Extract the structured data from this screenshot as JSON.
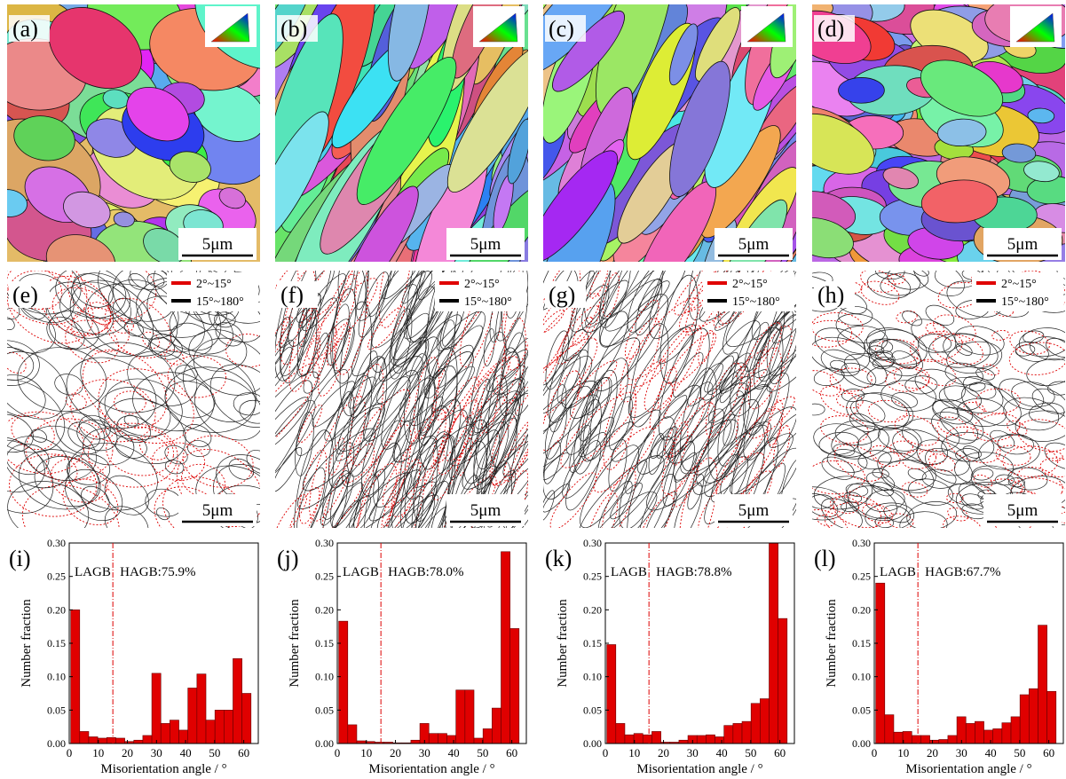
{
  "maps": [
    {
      "label": "(a)",
      "scale": "5μm"
    },
    {
      "label": "(b)",
      "scale": "5μm"
    },
    {
      "label": "(c)",
      "scale": "5μm"
    },
    {
      "label": "(d)",
      "scale": "5μm"
    },
    {
      "label": "(e)",
      "scale": "5μm"
    },
    {
      "label": "(f)",
      "scale": "5μm"
    },
    {
      "label": "(g)",
      "scale": "5μm"
    },
    {
      "label": "(h)",
      "scale": "5μm"
    }
  ],
  "boundary_legend": [
    {
      "name": "2°~15°",
      "color": "#e00000"
    },
    {
      "name": "15°~180°",
      "color": "#000000"
    }
  ],
  "chart_data": [
    {
      "type": "histogram",
      "label": "(i)",
      "annotations": [
        "LAGB",
        "HAGB:75.9%"
      ],
      "divider": 15,
      "x_label": "Misorientation angle / °",
      "y_label": "Number fraction",
      "color": "#e00000",
      "bins": [
        0.5,
        3.6,
        6.7,
        9.8,
        12.9,
        16,
        19.1,
        22.2,
        25.3,
        28.4,
        31.5,
        34.6,
        37.7,
        40.8,
        43.9,
        47,
        50.1,
        53.2,
        56.3,
        59.4,
        62.5
      ],
      "values": [
        0.2,
        0.018,
        0.01,
        0.008,
        0.009,
        0.008,
        0.003,
        0.005,
        0.012,
        0.105,
        0.03,
        0.035,
        0.02,
        0.083,
        0.104,
        0.035,
        0.05,
        0.05,
        0.127,
        0.075
      ],
      "xlim": [
        0,
        65
      ],
      "ylim": [
        0,
        0.3
      ],
      "xticks": [
        0,
        10,
        20,
        30,
        40,
        50,
        60
      ],
      "yticks": [
        {
          "value": 0,
          "label": "0.00"
        },
        {
          "value": 0.05,
          "label": "0.05"
        },
        {
          "value": 0.1,
          "label": "0.10"
        },
        {
          "value": 0.15,
          "label": "0.15"
        },
        {
          "value": 0.2,
          "label": "0.20"
        },
        {
          "value": 0.25,
          "label": "0.25"
        },
        {
          "value": 0.3,
          "label": "0.30"
        }
      ]
    },
    {
      "type": "histogram",
      "label": "(j)",
      "annotations": [
        "LAGB",
        "HAGB:78.0%"
      ],
      "divider": 15,
      "x_label": "Misorientation angle / °",
      "y_label": "Number fraction",
      "color": "#e00000",
      "bins": [
        0.5,
        3.6,
        6.7,
        9.8,
        12.9,
        16,
        19.1,
        22.2,
        25.3,
        28.4,
        31.5,
        34.6,
        37.7,
        40.8,
        43.9,
        47,
        50.1,
        53.2,
        56.3,
        59.4,
        62.5
      ],
      "values": [
        0.183,
        0.028,
        0.004,
        0.003,
        0.002,
        0.002,
        0.001,
        0.001,
        0.005,
        0.03,
        0.015,
        0.015,
        0.012,
        0.08,
        0.08,
        0.008,
        0.022,
        0.053,
        0.287,
        0.172
      ],
      "xlim": [
        0,
        65
      ],
      "ylim": [
        0,
        0.3
      ],
      "xticks": [
        0,
        10,
        20,
        30,
        40,
        50,
        60
      ],
      "yticks": [
        {
          "value": 0,
          "label": "0.00"
        },
        {
          "value": 0.05,
          "label": "0.05"
        },
        {
          "value": 0.1,
          "label": "0.10"
        },
        {
          "value": 0.15,
          "label": "0.15"
        },
        {
          "value": 0.2,
          "label": "0.20"
        },
        {
          "value": 0.25,
          "label": "0.25"
        },
        {
          "value": 0.3,
          "label": "0.30"
        }
      ]
    },
    {
      "type": "histogram",
      "label": "(k)",
      "annotations": [
        "LAGB",
        "HAGB:78.8%"
      ],
      "divider": 15,
      "x_label": "Misorientation angle / °",
      "y_label": "Number fraction",
      "color": "#e00000",
      "bins": [
        0.5,
        3.6,
        6.7,
        9.8,
        12.9,
        16,
        19.1,
        22.2,
        25.3,
        28.4,
        31.5,
        34.6,
        37.7,
        40.8,
        43.9,
        47,
        50.1,
        53.2,
        56.3,
        59.4,
        62.5
      ],
      "values": [
        0.148,
        0.03,
        0.013,
        0.015,
        0.013,
        0.018,
        0.002,
        0.002,
        0.005,
        0.012,
        0.012,
        0.013,
        0.01,
        0.027,
        0.03,
        0.033,
        0.06,
        0.067,
        0.3,
        0.187
      ],
      "xlim": [
        0,
        65
      ],
      "ylim": [
        0,
        0.3
      ],
      "xticks": [
        0,
        10,
        20,
        30,
        40,
        50,
        60
      ],
      "yticks": [
        {
          "value": 0,
          "label": "0.00"
        },
        {
          "value": 0.05,
          "label": "0.05"
        },
        {
          "value": 0.1,
          "label": "0.10"
        },
        {
          "value": 0.15,
          "label": "0.15"
        },
        {
          "value": 0.2,
          "label": "0.20"
        },
        {
          "value": 0.25,
          "label": "0.25"
        },
        {
          "value": 0.3,
          "label": "0.30"
        }
      ]
    },
    {
      "type": "histogram",
      "label": "(l)",
      "annotations": [
        "LAGB",
        "HAGB:67.7%"
      ],
      "divider": 15,
      "x_label": "Misorientation angle / °",
      "y_label": "Number fraction",
      "color": "#e00000",
      "bins": [
        0.5,
        3.6,
        6.7,
        9.8,
        12.9,
        16,
        19.1,
        22.2,
        25.3,
        28.4,
        31.5,
        34.6,
        37.7,
        40.8,
        43.9,
        47,
        50.1,
        53.2,
        56.3,
        59.4,
        62.5
      ],
      "values": [
        0.24,
        0.043,
        0.017,
        0.018,
        0.012,
        0.012,
        0.005,
        0.006,
        0.012,
        0.04,
        0.03,
        0.033,
        0.02,
        0.022,
        0.031,
        0.04,
        0.073,
        0.082,
        0.177,
        0.078
      ],
      "xlim": [
        0,
        65
      ],
      "ylim": [
        0,
        0.3
      ],
      "xticks": [
        0,
        10,
        20,
        30,
        40,
        50,
        60
      ],
      "yticks": [
        {
          "value": 0,
          "label": "0.00"
        },
        {
          "value": 0.05,
          "label": "0.05"
        },
        {
          "value": 0.1,
          "label": "0.10"
        },
        {
          "value": 0.15,
          "label": "0.15"
        },
        {
          "value": 0.2,
          "label": "0.20"
        },
        {
          "value": 0.25,
          "label": "0.25"
        },
        {
          "value": 0.3,
          "label": "0.30"
        }
      ]
    }
  ]
}
